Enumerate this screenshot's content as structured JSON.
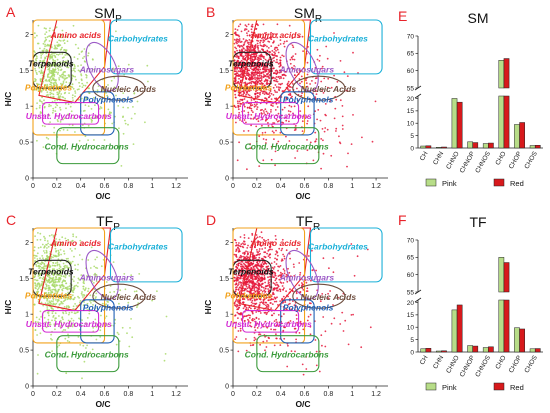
{
  "colors": {
    "pink_point": "#a9d96a",
    "red_point": "#e5173b",
    "bar_pink": "#b7dd88",
    "bar_red": "#d7191c",
    "letter": "#e8232a"
  },
  "van_krevelen": {
    "x_ticks": [
      "0",
      "0.2",
      "0.4",
      "0.6",
      "0.8",
      "1",
      "1.2"
    ],
    "y_ticks": [
      "0",
      "0.5",
      "1",
      "1.5",
      "2"
    ],
    "xlabel": "O/C",
    "ylabel": "H/C",
    "regions": {
      "amino": "Amino acids",
      "carb": "Carbohydrates",
      "terp": "Terpenoids",
      "aminosug": "Aminosugars",
      "polyket": "Polyketides",
      "nucleic": "Nucleic Acids",
      "polyphen": "Polyphenols",
      "unsat": "Unsat. Hydrocarbons",
      "cond": "Cond. Hydrocarbons"
    }
  },
  "panels": {
    "A": {
      "letter": "A",
      "title": "SM",
      "sub": "P"
    },
    "B": {
      "letter": "B",
      "title": "SM",
      "sub": "R"
    },
    "C": {
      "letter": "C",
      "title": "TF",
      "sub": "P"
    },
    "D": {
      "letter": "D",
      "title": "TF",
      "sub": "R"
    },
    "E": {
      "letter": "E",
      "title": "SM"
    },
    "F": {
      "letter": "F",
      "title": "TF"
    }
  },
  "bar_axis": {
    "upper_ticks": [
      "55",
      "60",
      "65",
      "70"
    ],
    "lower_ticks": [
      "0",
      "5",
      "10",
      "15",
      "20"
    ],
    "categories": [
      "CH",
      "CHN",
      "CHNO",
      "CHNOP",
      "CHNOS",
      "CHO",
      "CHOP",
      "CHOS"
    ]
  },
  "legend": {
    "pink": "Pink",
    "red": "Red"
  },
  "chart_data": [
    {
      "type": "scatter",
      "panel": "A",
      "title": "SMP",
      "xlabel": "O/C",
      "ylabel": "H/C",
      "xlim": [
        0,
        1.3
      ],
      "ylim": [
        0,
        2.2
      ],
      "series": [
        {
          "name": "Pink",
          "note": "dense cluster O/C 0–0.4, H/C 1.0–2.1"
        }
      ]
    },
    {
      "type": "scatter",
      "panel": "B",
      "title": "SMR",
      "xlabel": "O/C",
      "ylabel": "H/C",
      "xlim": [
        0,
        1.3
      ],
      "ylim": [
        0,
        2.2
      ],
      "series": [
        {
          "name": "Red",
          "note": "broad cloud O/C 0–1.2, H/C 0.3–2.1"
        }
      ]
    },
    {
      "type": "scatter",
      "panel": "C",
      "title": "TFP",
      "xlabel": "O/C",
      "ylabel": "H/C",
      "xlim": [
        0,
        1.3
      ],
      "ylim": [
        0,
        2.2
      ],
      "series": [
        {
          "name": "Pink"
        }
      ]
    },
    {
      "type": "scatter",
      "panel": "D",
      "title": "TFR",
      "xlabel": "O/C",
      "ylabel": "H/C",
      "xlim": [
        0,
        1.3
      ],
      "ylim": [
        0,
        2.2
      ],
      "series": [
        {
          "name": "Red"
        }
      ]
    },
    {
      "type": "bar",
      "panel": "E",
      "title": "SM",
      "categories": [
        "CH",
        "CHN",
        "CHNO",
        "CHNOP",
        "CHNOS",
        "CHO",
        "CHOP",
        "CHOS"
      ],
      "ylim_lower": [
        0,
        21
      ],
      "ylim_upper": [
        55,
        70
      ],
      "series": [
        {
          "name": "Pink",
          "values": [
            0.8,
            0.3,
            20,
            2.5,
            1.8,
            63,
            9.5,
            1.0
          ]
        },
        {
          "name": "Red",
          "values": [
            0.9,
            0.4,
            18.5,
            2.2,
            2.0,
            63.5,
            10.3,
            1.1
          ]
        }
      ]
    },
    {
      "type": "bar",
      "panel": "F",
      "title": "TF",
      "categories": [
        "CH",
        "CHN",
        "CHNO",
        "CHNOP",
        "CHNOS",
        "CHO",
        "CHOP",
        "CHOS"
      ],
      "ylim_lower": [
        0,
        21
      ],
      "ylim_upper": [
        55,
        70
      ],
      "series": [
        {
          "name": "Pink",
          "values": [
            1.3,
            0.4,
            17,
            2.6,
            1.8,
            65,
            9.8,
            1.3
          ]
        },
        {
          "name": "Red",
          "values": [
            1.5,
            0.5,
            19,
            2.4,
            2.1,
            63.5,
            9.3,
            1.4
          ]
        }
      ]
    }
  ]
}
